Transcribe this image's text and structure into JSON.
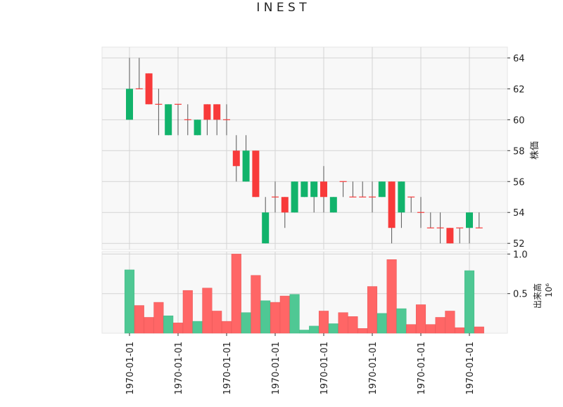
{
  "chart_data": {
    "type": "candlestick",
    "title": "I N E S T",
    "price_axis_label": "株価",
    "volume_axis_label": "出来高",
    "volume_exponent_label": "10⁶",
    "price_ylim": [
      51.6,
      64.7
    ],
    "price_ticks": [
      "52",
      "54",
      "56",
      "58",
      "60",
      "62",
      "64"
    ],
    "volume_ylim": [
      0,
      1.03
    ],
    "volume_ticks": [
      "0.5",
      "1.0"
    ],
    "x_tick_label": "1970-01-01",
    "x_tick_indices": [
      0,
      5,
      10,
      15,
      20,
      25,
      30,
      35
    ],
    "grid": true,
    "up_color": "#11b36b",
    "down_color": "#f83a3a",
    "volume_up_color": "#4fc894",
    "volume_down_color": "#ff6666",
    "wick_color": "#555555",
    "candles": [
      {
        "open": 60,
        "high": 64,
        "low": 60,
        "close": 62,
        "volume": 0.8
      },
      {
        "open": 62,
        "high": 64,
        "low": 62,
        "close": 62,
        "volume": 0.35
      },
      {
        "open": 63,
        "high": 63,
        "low": 61,
        "close": 61,
        "volume": 0.2
      },
      {
        "open": 61,
        "high": 62,
        "low": 59,
        "close": 61,
        "volume": 0.39
      },
      {
        "open": 59,
        "high": 61,
        "low": 59,
        "close": 61,
        "volume": 0.22
      },
      {
        "open": 61,
        "high": 61,
        "low": 59,
        "close": 61,
        "volume": 0.13
      },
      {
        "open": 60,
        "high": 61,
        "low": 59,
        "close": 60,
        "volume": 0.54
      },
      {
        "open": 59,
        "high": 60,
        "low": 59,
        "close": 60,
        "volume": 0.15
      },
      {
        "open": 61,
        "high": 61,
        "low": 59,
        "close": 60,
        "volume": 0.57
      },
      {
        "open": 61,
        "high": 61,
        "low": 59,
        "close": 60,
        "volume": 0.28
      },
      {
        "open": 60,
        "high": 61,
        "low": 59,
        "close": 60,
        "volume": 0.15
      },
      {
        "open": 58,
        "high": 59,
        "low": 56,
        "close": 57,
        "volume": 1.0
      },
      {
        "open": 56,
        "high": 59,
        "low": 56,
        "close": 58,
        "volume": 0.26
      },
      {
        "open": 58,
        "high": 58,
        "low": 55,
        "close": 55,
        "volume": 0.73
      },
      {
        "open": 52,
        "high": 55,
        "low": 52,
        "close": 54,
        "volume": 0.41
      },
      {
        "open": 55,
        "high": 56,
        "low": 54,
        "close": 55,
        "volume": 0.39
      },
      {
        "open": 55,
        "high": 55,
        "low": 53,
        "close": 54,
        "volume": 0.47
      },
      {
        "open": 54,
        "high": 56,
        "low": 54,
        "close": 56,
        "volume": 0.49
      },
      {
        "open": 55,
        "high": 56,
        "low": 55,
        "close": 56,
        "volume": 0.04
      },
      {
        "open": 55,
        "high": 56,
        "low": 54,
        "close": 56,
        "volume": 0.09
      },
      {
        "open": 56,
        "high": 57,
        "low": 54,
        "close": 55,
        "volume": 0.28
      },
      {
        "open": 54,
        "high": 55,
        "low": 54,
        "close": 55,
        "volume": 0.12
      },
      {
        "open": 56,
        "high": 56,
        "low": 55,
        "close": 56,
        "volume": 0.26
      },
      {
        "open": 55,
        "high": 56,
        "low": 55,
        "close": 55,
        "volume": 0.21
      },
      {
        "open": 55,
        "high": 56,
        "low": 55,
        "close": 55,
        "volume": 0.06
      },
      {
        "open": 55,
        "high": 56,
        "low": 54,
        "close": 55,
        "volume": 0.59
      },
      {
        "open": 55,
        "high": 56,
        "low": 55,
        "close": 56,
        "volume": 0.25
      },
      {
        "open": 56,
        "high": 56,
        "low": 52,
        "close": 53,
        "volume": 0.93
      },
      {
        "open": 54,
        "high": 56,
        "low": 53,
        "close": 56,
        "volume": 0.31
      },
      {
        "open": 55,
        "high": 55,
        "low": 54,
        "close": 55,
        "volume": 0.11
      },
      {
        "open": 54,
        "high": 55,
        "low": 53,
        "close": 54,
        "volume": 0.36
      },
      {
        "open": 53,
        "high": 54,
        "low": 53,
        "close": 53,
        "volume": 0.11
      },
      {
        "open": 53,
        "high": 54,
        "low": 52,
        "close": 53,
        "volume": 0.2
      },
      {
        "open": 53,
        "high": 53,
        "low": 52,
        "close": 52,
        "volume": 0.28
      },
      {
        "open": 53,
        "high": 53,
        "low": 52,
        "close": 53,
        "volume": 0.07
      },
      {
        "open": 53,
        "high": 54,
        "low": 52,
        "close": 54,
        "volume": 0.79
      },
      {
        "open": 53,
        "high": 54,
        "low": 53,
        "close": 53,
        "volume": 0.08
      }
    ]
  }
}
